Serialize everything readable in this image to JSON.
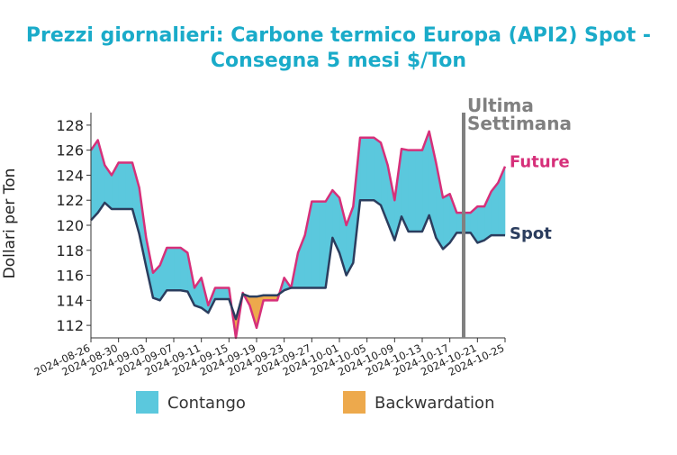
{
  "chart_data": {
    "type": "area",
    "title": "Prezzi giornalieri: Carbone termico Europa (API2) Spot - Consegna 5 mesi $/Ton",
    "ylabel": "Dollari per Ton",
    "xlabel": "",
    "ylim": [
      111,
      129
    ],
    "yticks": [
      112,
      114,
      116,
      118,
      120,
      122,
      124,
      126,
      128
    ],
    "x_index_range": [
      0,
      60
    ],
    "xtick_labels": [
      "2024-08-26",
      "2024-08-30",
      "2024-09-03",
      "2024-09-07",
      "2024-09-11",
      "2024-09-15",
      "2024-09-19",
      "2024-09-23",
      "2024-09-27",
      "2024-10-01",
      "2024-10-05",
      "2024-10-09",
      "2024-10-13",
      "2024-10-17",
      "2024-10-21",
      "2024-10-25"
    ],
    "series": [
      {
        "name": "Future",
        "color": "#d6307a",
        "values": [
          126.0,
          126.8,
          124.8,
          124.0,
          125.0,
          125.0,
          125.0,
          123.0,
          119.0,
          116.2,
          116.8,
          118.2,
          118.2,
          118.2,
          117.8,
          115.0,
          115.8,
          113.6,
          115.0,
          115.0,
          115.0,
          111.0,
          114.6,
          113.6,
          111.8,
          114.0,
          114.0,
          114.0,
          115.8,
          115.0,
          117.8,
          119.2,
          121.9,
          121.9,
          121.9,
          122.8,
          122.2,
          120.0,
          121.5,
          127.0,
          127.0,
          127.0,
          126.6,
          124.8,
          122.0,
          126.1,
          126.0,
          126.0,
          126.0,
          127.5,
          125.0,
          122.2,
          122.5,
          121.0,
          121.0,
          121.0,
          121.5,
          121.5,
          122.7,
          123.4,
          124.7
        ]
      },
      {
        "name": "Spot",
        "color": "#2b3d5e",
        "values": [
          120.4,
          121.0,
          121.8,
          121.3,
          121.3,
          121.3,
          121.3,
          119.3,
          116.7,
          114.2,
          114.0,
          114.8,
          114.8,
          114.8,
          114.7,
          113.6,
          113.4,
          113.0,
          114.1,
          114.1,
          114.1,
          112.5,
          114.5,
          114.3,
          114.3,
          114.4,
          114.4,
          114.4,
          114.8,
          115.0,
          115.0,
          115.0,
          115.0,
          115.0,
          115.0,
          119.0,
          117.8,
          116.0,
          117.0,
          122.0,
          122.0,
          122.0,
          121.6,
          120.2,
          118.8,
          120.7,
          119.5,
          119.5,
          119.5,
          120.8,
          119.0,
          118.1,
          118.6,
          119.4,
          119.4,
          119.4,
          118.6,
          118.8,
          119.2,
          119.2,
          119.2
        ]
      }
    ],
    "fill_colors": {
      "contango": "#5bc8dd",
      "backwardation": "#eda94c"
    },
    "annotation": {
      "line1": "Ultima",
      "line2": "Settimana",
      "x_index": 54,
      "color": "#808080"
    },
    "legend": {
      "position": "bottom",
      "items": [
        {
          "label": "Contango",
          "color": "#5bc8dd"
        },
        {
          "label": "Backwardation",
          "color": "#eda94c"
        }
      ]
    }
  }
}
